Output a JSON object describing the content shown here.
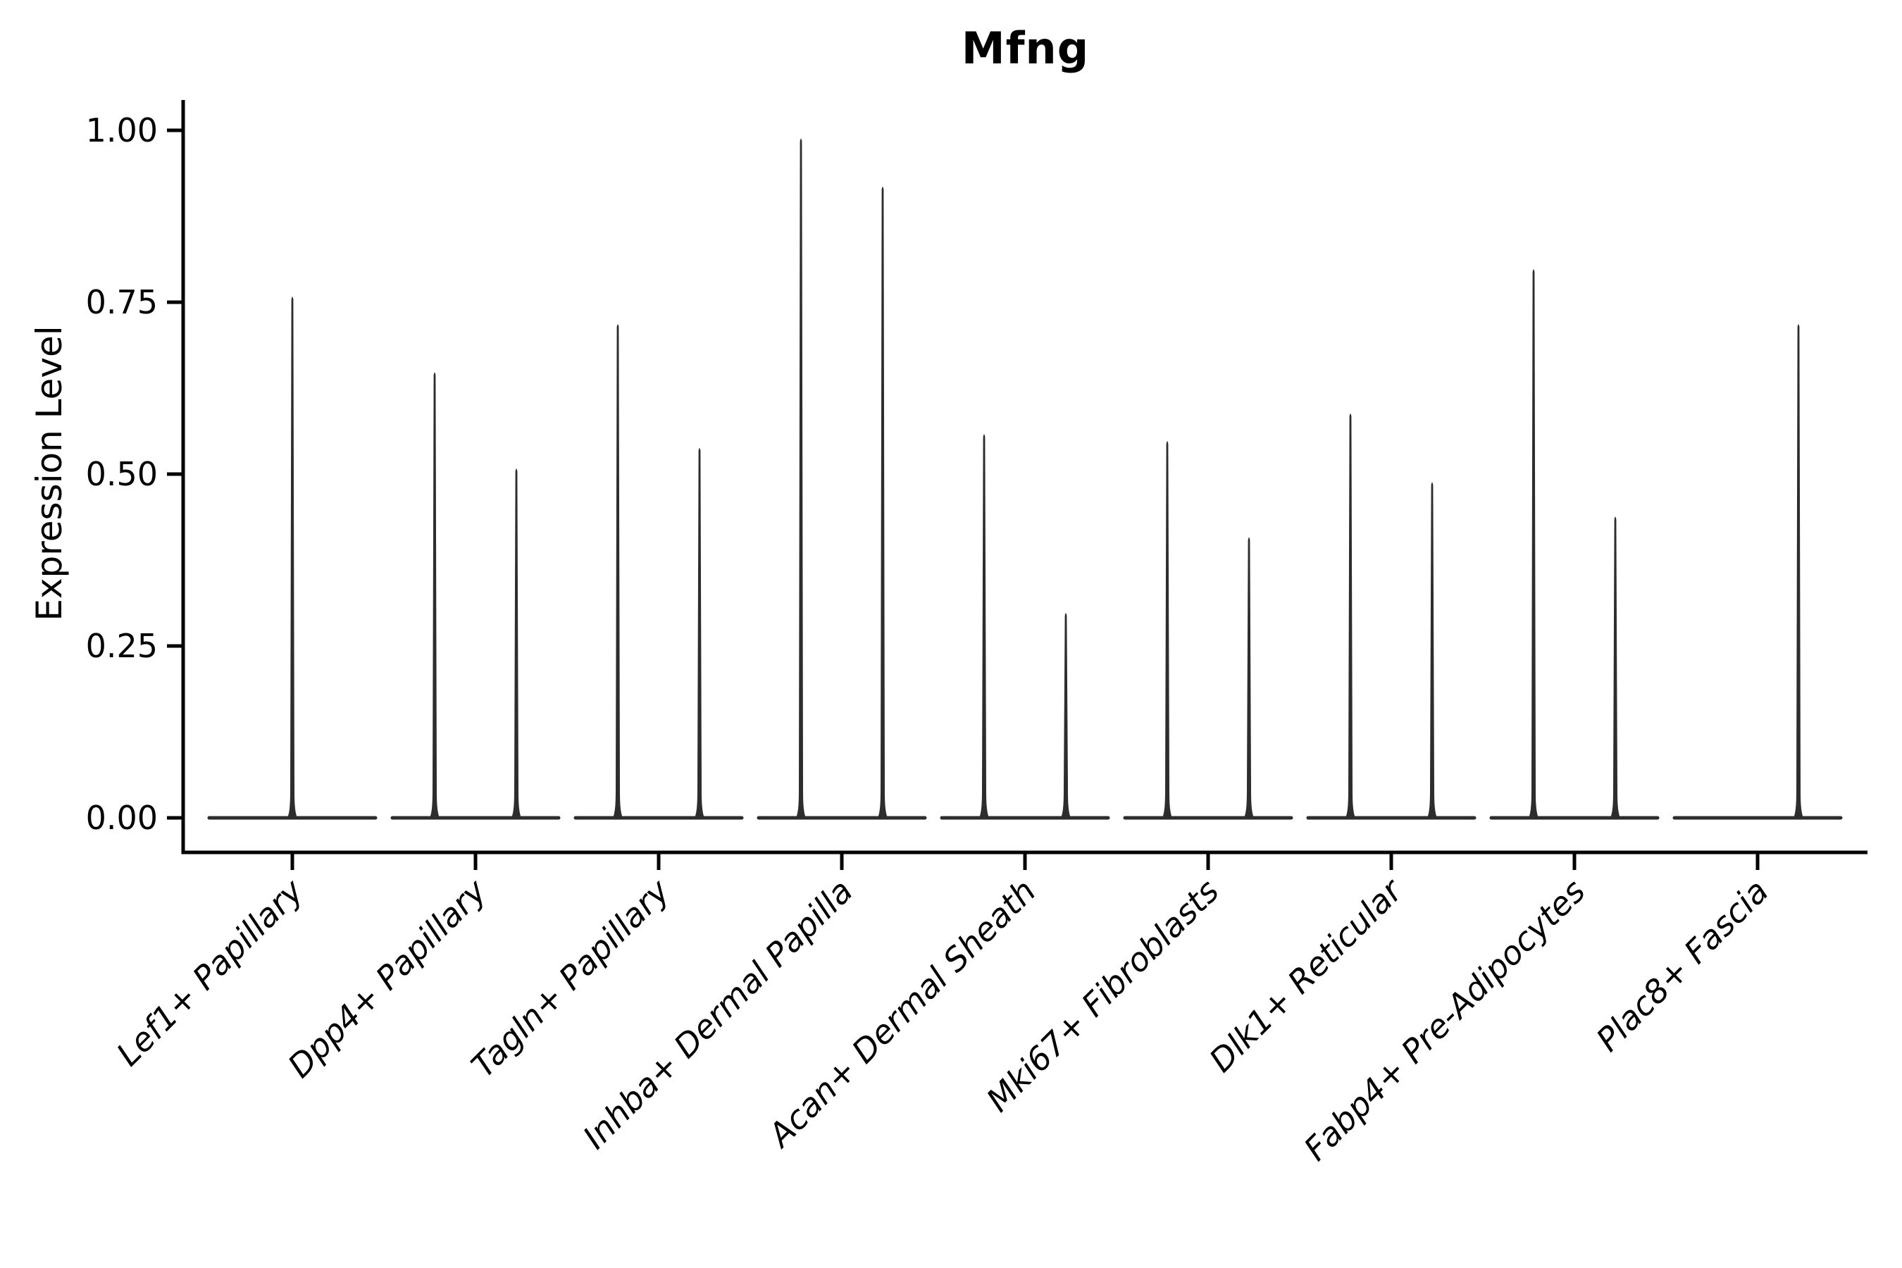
{
  "figure": {
    "title": "Mfng",
    "y_axis_label": "Expression Level"
  },
  "chart_data": {
    "type": "violin",
    "title": "Mfng",
    "xlabel": "",
    "ylabel": "Expression Level",
    "ylim": [
      0,
      1.05
    ],
    "grid": false,
    "legend": "none",
    "x_tick_rotation_deg": 45,
    "yticks": [
      {
        "value": 1.0,
        "label": "1.00"
      },
      {
        "value": 0.75,
        "label": "0.75"
      },
      {
        "value": 0.5,
        "label": "0.50"
      },
      {
        "value": 0.25,
        "label": "0.25"
      },
      {
        "value": 0.0,
        "label": "0.00"
      }
    ],
    "categories": [
      "Lef1+ Papillary",
      "Dpp4+ Papillary",
      "Tagln+ Papillary",
      "Inhba+ Dermal Papilla",
      "Acan+ Dermal Sheath",
      "Mki67+ Fibroblasts",
      "Dlk1+ Reticular",
      "Fabp4+ Pre-Adipocytes",
      "Plac8+ Fascia"
    ],
    "groups": [
      {
        "category": "Lef1+ Papillary",
        "violins": [
          {
            "position": "center",
            "max_expression": 0.76
          }
        ]
      },
      {
        "category": "Dpp4+ Papillary",
        "violins": [
          {
            "position": "left",
            "max_expression": 0.65
          },
          {
            "position": "right",
            "max_expression": 0.51
          }
        ]
      },
      {
        "category": "Tagln+ Papillary",
        "violins": [
          {
            "position": "left",
            "max_expression": 0.72
          },
          {
            "position": "right",
            "max_expression": 0.54
          }
        ]
      },
      {
        "category": "Inhba+ Dermal Papilla",
        "violins": [
          {
            "position": "left",
            "max_expression": 0.99
          },
          {
            "position": "right",
            "max_expression": 0.92
          }
        ]
      },
      {
        "category": "Acan+ Dermal Sheath",
        "violins": [
          {
            "position": "left",
            "max_expression": 0.56
          },
          {
            "position": "right",
            "max_expression": 0.3
          }
        ]
      },
      {
        "category": "Mki67+ Fibroblasts",
        "violins": [
          {
            "position": "left",
            "max_expression": 0.55
          },
          {
            "position": "right",
            "max_expression": 0.41
          }
        ]
      },
      {
        "category": "Dlk1+ Reticular",
        "violins": [
          {
            "position": "left",
            "max_expression": 0.59
          },
          {
            "position": "right",
            "max_expression": 0.49
          }
        ]
      },
      {
        "category": "Fabp4+ Pre-Adipocytes",
        "violins": [
          {
            "position": "left",
            "max_expression": 0.8
          },
          {
            "position": "right",
            "max_expression": 0.44
          }
        ]
      },
      {
        "category": "Plac8+ Fascia",
        "violins": [
          {
            "position": "right",
            "max_expression": 0.72
          }
        ]
      }
    ],
    "style": {
      "violin_color": "#2d2d2d",
      "axis_color": "#000000",
      "text_color": "#000000",
      "background": "#ffffff"
    }
  }
}
